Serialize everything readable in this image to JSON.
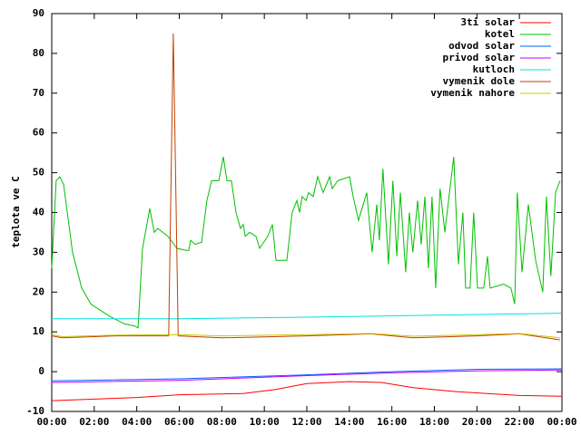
{
  "chart_data": {
    "type": "line",
    "ylabel": "teplota ve C",
    "xlim": [
      0,
      24
    ],
    "xticks": [
      {
        "value": 0,
        "label": "00:00"
      },
      {
        "value": 2,
        "label": "02:00"
      },
      {
        "value": 4,
        "label": "04:00"
      },
      {
        "value": 6,
        "label": "06:00"
      },
      {
        "value": 8,
        "label": "08:00"
      },
      {
        "value": 10,
        "label": "10:00"
      },
      {
        "value": 12,
        "label": "12:00"
      },
      {
        "value": 14,
        "label": "14:00"
      },
      {
        "value": 16,
        "label": "16:00"
      },
      {
        "value": 18,
        "label": "18:00"
      },
      {
        "value": 20,
        "label": "20:00"
      },
      {
        "value": 22,
        "label": "22:00"
      },
      {
        "value": 24,
        "label": "00:00"
      }
    ],
    "ylim": [
      -10,
      90
    ],
    "yticks": [
      -10,
      0,
      10,
      20,
      30,
      40,
      50,
      60,
      70,
      80,
      90
    ],
    "legend": "top-right",
    "series": [
      {
        "name": "3ti solar",
        "color": "#ff0000",
        "x": [
          0,
          4,
          6,
          9,
          10.5,
          12,
          14,
          15.5,
          17,
          19,
          22,
          24
        ],
        "values": [
          -7.3,
          -6.5,
          -5.8,
          -5.5,
          -4.5,
          -3,
          -2.5,
          -2.7,
          -4,
          -5,
          -6,
          -6.2
        ]
      },
      {
        "name": "kotel",
        "color": "#00c000",
        "x": [
          0,
          0.21,
          0.38,
          0.56,
          0.98,
          1.41,
          1.84,
          2.69,
          3.42,
          3.89,
          4.06,
          4.27,
          4.61,
          4.82,
          4.99,
          5.47,
          5.89,
          6.32,
          6.45,
          6.53,
          6.75,
          7.05,
          7.3,
          7.52,
          7.86,
          8.07,
          8.24,
          8.45,
          8.67,
          8.88,
          9.01,
          9.1,
          9.31,
          9.61,
          9.78,
          10.16,
          10.38,
          10.55,
          11.06,
          11.31,
          11.53,
          11.66,
          11.78,
          11.96,
          12.08,
          12.3,
          12.51,
          12.77,
          13.07,
          13.19,
          13.45,
          14.01,
          14.18,
          14.43,
          14.65,
          14.82,
          15.07,
          15.29,
          15.41,
          15.58,
          15.84,
          16.05,
          16.23,
          16.4,
          16.65,
          16.82,
          16.99,
          17.21,
          17.38,
          17.55,
          17.72,
          17.89,
          18.06,
          18.27,
          18.49,
          18.91,
          19.13,
          19.34,
          19.47,
          19.68,
          19.85,
          20.03,
          20.32,
          20.5,
          20.62,
          21.26,
          21.6,
          21.78,
          21.9,
          22.12,
          22.42,
          22.76,
          23.1,
          23.27,
          23.48,
          23.7,
          23.91
        ],
        "values": [
          26,
          48,
          49,
          47,
          30,
          21,
          17,
          14,
          12,
          11.5,
          11,
          31,
          41,
          35,
          36,
          34,
          31,
          30.5,
          30.5,
          33,
          32,
          32.5,
          43,
          48,
          48,
          54,
          48,
          48,
          40,
          36,
          37,
          34,
          35,
          34,
          31,
          34,
          37,
          28,
          28,
          40,
          43,
          40,
          44,
          43,
          45,
          44,
          49,
          45,
          49,
          46,
          48,
          49,
          44,
          38,
          42,
          45,
          30,
          42,
          33,
          51,
          27,
          48,
          29,
          45,
          25,
          40,
          30,
          43,
          32,
          44,
          26,
          44,
          21,
          46,
          35,
          54,
          27,
          40,
          21,
          21,
          40,
          21,
          21,
          29,
          21,
          22,
          21,
          17,
          45,
          25,
          42,
          28,
          20,
          44,
          24,
          45,
          48
        ]
      },
      {
        "name": "odvod solar",
        "color": "#0060ff",
        "x": [
          0,
          6,
          12,
          16,
          20,
          24
        ],
        "values": [
          -2.3,
          -1.8,
          -0.8,
          0,
          0.6,
          0.7
        ]
      },
      {
        "name": "privod solar",
        "color": "#c000ff",
        "x": [
          0,
          6,
          12,
          16,
          20,
          24
        ],
        "values": [
          -2.7,
          -2.2,
          -1,
          -0.3,
          0.2,
          0.4
        ]
      },
      {
        "name": "kutloch",
        "color": "#00e0e0",
        "x": [
          0,
          6,
          12,
          18,
          24
        ],
        "values": [
          13.3,
          13.3,
          13.7,
          14.2,
          14.7
        ]
      },
      {
        "name": "vymenik dole",
        "color": "#c04000",
        "x": [
          0,
          0.5,
          3,
          5.5,
          5.72,
          5.95,
          8,
          12,
          15,
          17,
          20,
          22,
          23.9
        ],
        "values": [
          9,
          8.5,
          9,
          9,
          85,
          9,
          8.5,
          9,
          9.5,
          8.5,
          9,
          9.5,
          8
        ]
      },
      {
        "name": "vymenik nahore",
        "color": "#c8c800",
        "x": [
          0,
          0.5,
          3,
          6,
          8,
          12,
          15,
          17,
          20,
          22,
          23.9
        ],
        "values": [
          9.3,
          8.8,
          9.2,
          9.3,
          9,
          9.3,
          9.6,
          8.9,
          9.3,
          9.6,
          8.5
        ]
      }
    ]
  }
}
